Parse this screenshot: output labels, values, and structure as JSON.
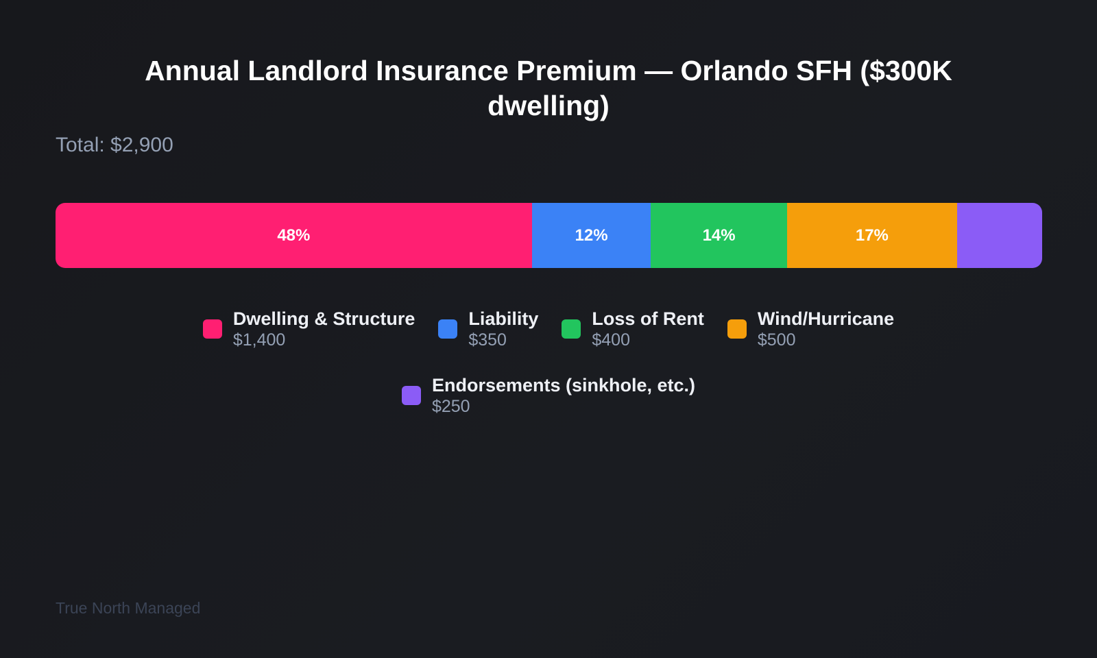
{
  "chart_data": {
    "type": "bar",
    "orientation": "horizontal-stacked-100",
    "title": "Annual Landlord Insurance Premium — Orlando SFH ($300K dwelling)",
    "subtitle": "Total: $2,900",
    "total": 2900,
    "legend_position": "bottom",
    "grid": false,
    "categories": [
      "Dwelling & Structure",
      "Liability",
      "Loss of Rent",
      "Wind/Hurricane",
      "Endorsements (sinkhole, etc.)"
    ],
    "values": [
      1400,
      350,
      400,
      500,
      250
    ],
    "value_labels": [
      "$1,400",
      "$350",
      "$400",
      "$500",
      "$250"
    ],
    "percent_labels": [
      "48%",
      "12%",
      "14%",
      "17%",
      ""
    ],
    "colors": [
      "#ff1f72",
      "#3b82f6",
      "#22c55e",
      "#f59e0b",
      "#8b5cf6"
    ]
  },
  "footer": "True North Managed"
}
